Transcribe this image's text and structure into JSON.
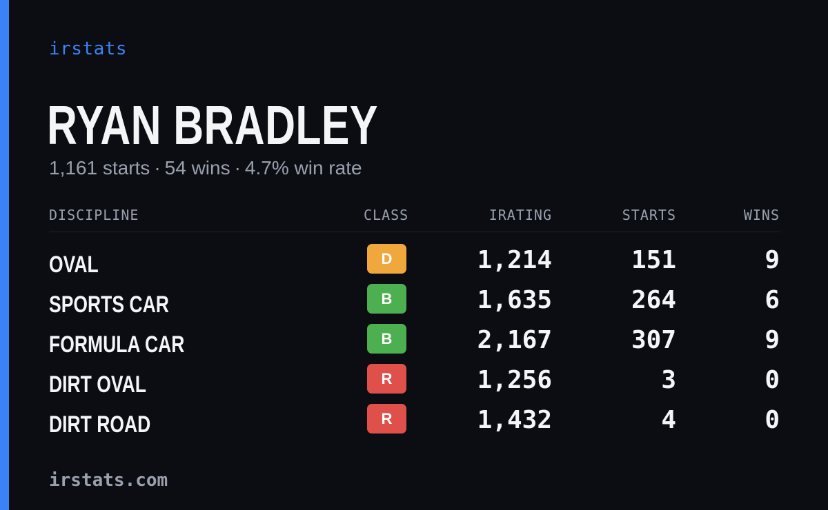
{
  "brand": "irstats",
  "driver": {
    "name": "RYAN BRADLEY",
    "summary": {
      "starts": "1,161 starts",
      "wins": "54 wins",
      "win_rate": "4.7% win rate",
      "separator": "·"
    }
  },
  "table": {
    "headers": {
      "discipline": "DISCIPLINE",
      "class": "CLASS",
      "irating": "IRATING",
      "starts": "STARTS",
      "wins": "WINS"
    },
    "rows": [
      {
        "discipline": "OVAL",
        "class": "D",
        "class_color": "#f0a83c",
        "irating": "1,214",
        "starts": "151",
        "wins": "9"
      },
      {
        "discipline": "SPORTS CAR",
        "class": "B",
        "class_color": "#4caf50",
        "irating": "1,635",
        "starts": "264",
        "wins": "6"
      },
      {
        "discipline": "FORMULA CAR",
        "class": "B",
        "class_color": "#4caf50",
        "irating": "2,167",
        "starts": "307",
        "wins": "9"
      },
      {
        "discipline": "DIRT OVAL",
        "class": "R",
        "class_color": "#e0504a",
        "irating": "1,256",
        "starts": "3",
        "wins": "0"
      },
      {
        "discipline": "DIRT ROAD",
        "class": "R",
        "class_color": "#e0504a",
        "irating": "1,432",
        "starts": "4",
        "wins": "0"
      }
    ]
  },
  "footer": "irstats.com",
  "colors": {
    "accent": "#3b82f6",
    "background": "#0b0d13",
    "muted_text": "#9aa1ad"
  }
}
